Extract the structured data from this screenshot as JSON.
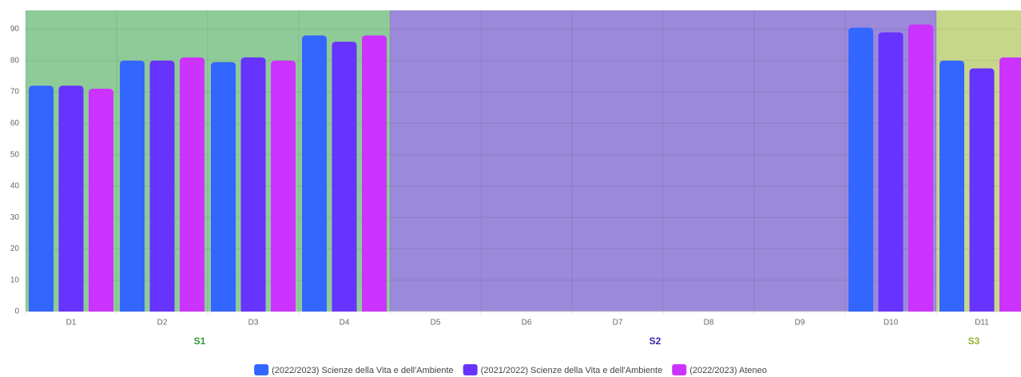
{
  "chart_data": {
    "type": "bar",
    "categories": [
      "D1",
      "D2",
      "D3",
      "D4",
      "D5",
      "D6",
      "D7",
      "D8",
      "D9",
      "D10",
      "D11"
    ],
    "series": [
      {
        "name": "(2022/2023) Scienze della Vita e dell'Ambiente",
        "color": "#3366ff",
        "values": [
          72,
          80,
          79.5,
          88,
          null,
          null,
          null,
          null,
          null,
          90.5,
          80
        ]
      },
      {
        "name": "(2021/2022) Scienze della Vita e dell'Ambiente",
        "color": "#6633ff",
        "values": [
          72,
          80,
          81,
          86,
          null,
          null,
          null,
          null,
          null,
          89,
          77.5
        ]
      },
      {
        "name": "(2022/2023) Ateneo",
        "color": "#cc33ff",
        "values": [
          71,
          81,
          80,
          88,
          null,
          null,
          null,
          null,
          null,
          91.5,
          81
        ]
      }
    ],
    "groups": [
      {
        "name": "S1",
        "color": "#8fcb98",
        "label_color": "#2e9a35",
        "members": [
          "D1",
          "D2",
          "D3",
          "D4"
        ]
      },
      {
        "name": "S2",
        "color": "#9b89d9",
        "label_color": "#3a1fae",
        "members": [
          "D5",
          "D6",
          "D7",
          "D8",
          "D9",
          "D10"
        ]
      },
      {
        "name": "S3",
        "color": "#c7d78a",
        "label_color": "#93b32f",
        "members": [
          "D11"
        ]
      }
    ],
    "ylim": [
      0,
      96
    ],
    "yticks": [
      0,
      10,
      20,
      30,
      40,
      50,
      60,
      70,
      80,
      90
    ],
    "grid": true,
    "legend": "bottom"
  }
}
